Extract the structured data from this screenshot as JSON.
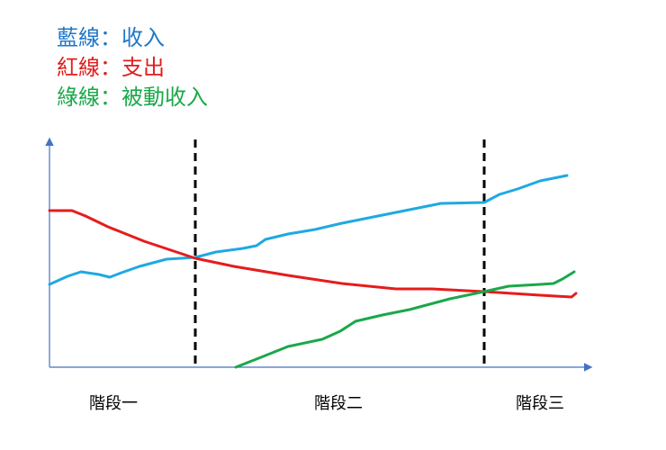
{
  "legend": [
    "藍線：收入",
    "紅線：支出",
    "綠線：被動收入"
  ],
  "stages": [
    "階段一",
    "階段二",
    "階段三"
  ]
}
